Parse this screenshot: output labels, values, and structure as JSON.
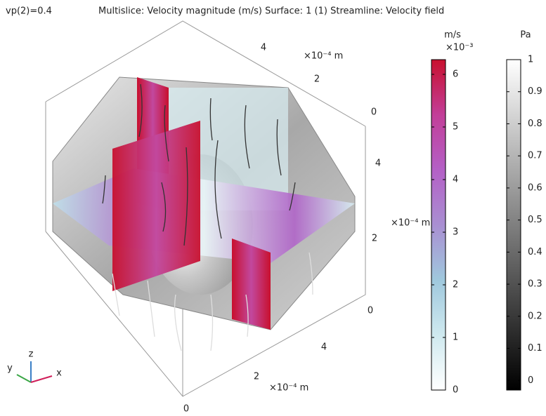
{
  "header": {
    "parameter": "vp(2)=0.4",
    "title": "Multislice: Velocity magnitude (m/s)  Surface: 1 (1)  Streamline: Velocity field"
  },
  "axes": {
    "x": {
      "unit": "×10⁻⁴ m",
      "ticks": [
        0,
        2,
        4
      ]
    },
    "y": {
      "unit": "×10⁻⁴ m",
      "ticks": [
        4,
        2,
        0
      ]
    },
    "z": {
      "unit": "×10⁻⁴ m",
      "ticks": [
        0,
        2,
        4
      ]
    }
  },
  "triad": {
    "x": "x",
    "y": "y",
    "z": "z"
  },
  "colorbars": [
    {
      "unit": "m/s",
      "scale": "×10⁻³",
      "range": [
        0,
        6.28
      ],
      "ticks": [
        0,
        1,
        2,
        3,
        4,
        5,
        6
      ],
      "colors": [
        "#ffffff",
        "#cfe9ef",
        "#9fc8dd",
        "#a98fd2",
        "#b460c6",
        "#c23e98",
        "#c8102e"
      ]
    },
    {
      "unit": "Pa",
      "range": [
        -0.03,
        1
      ],
      "ticks": [
        0,
        0.1,
        0.2,
        0.3,
        0.4,
        0.5,
        0.6,
        0.7,
        0.8,
        0.9,
        1
      ],
      "colors": [
        "#000000",
        "#ffffff"
      ]
    }
  ]
}
